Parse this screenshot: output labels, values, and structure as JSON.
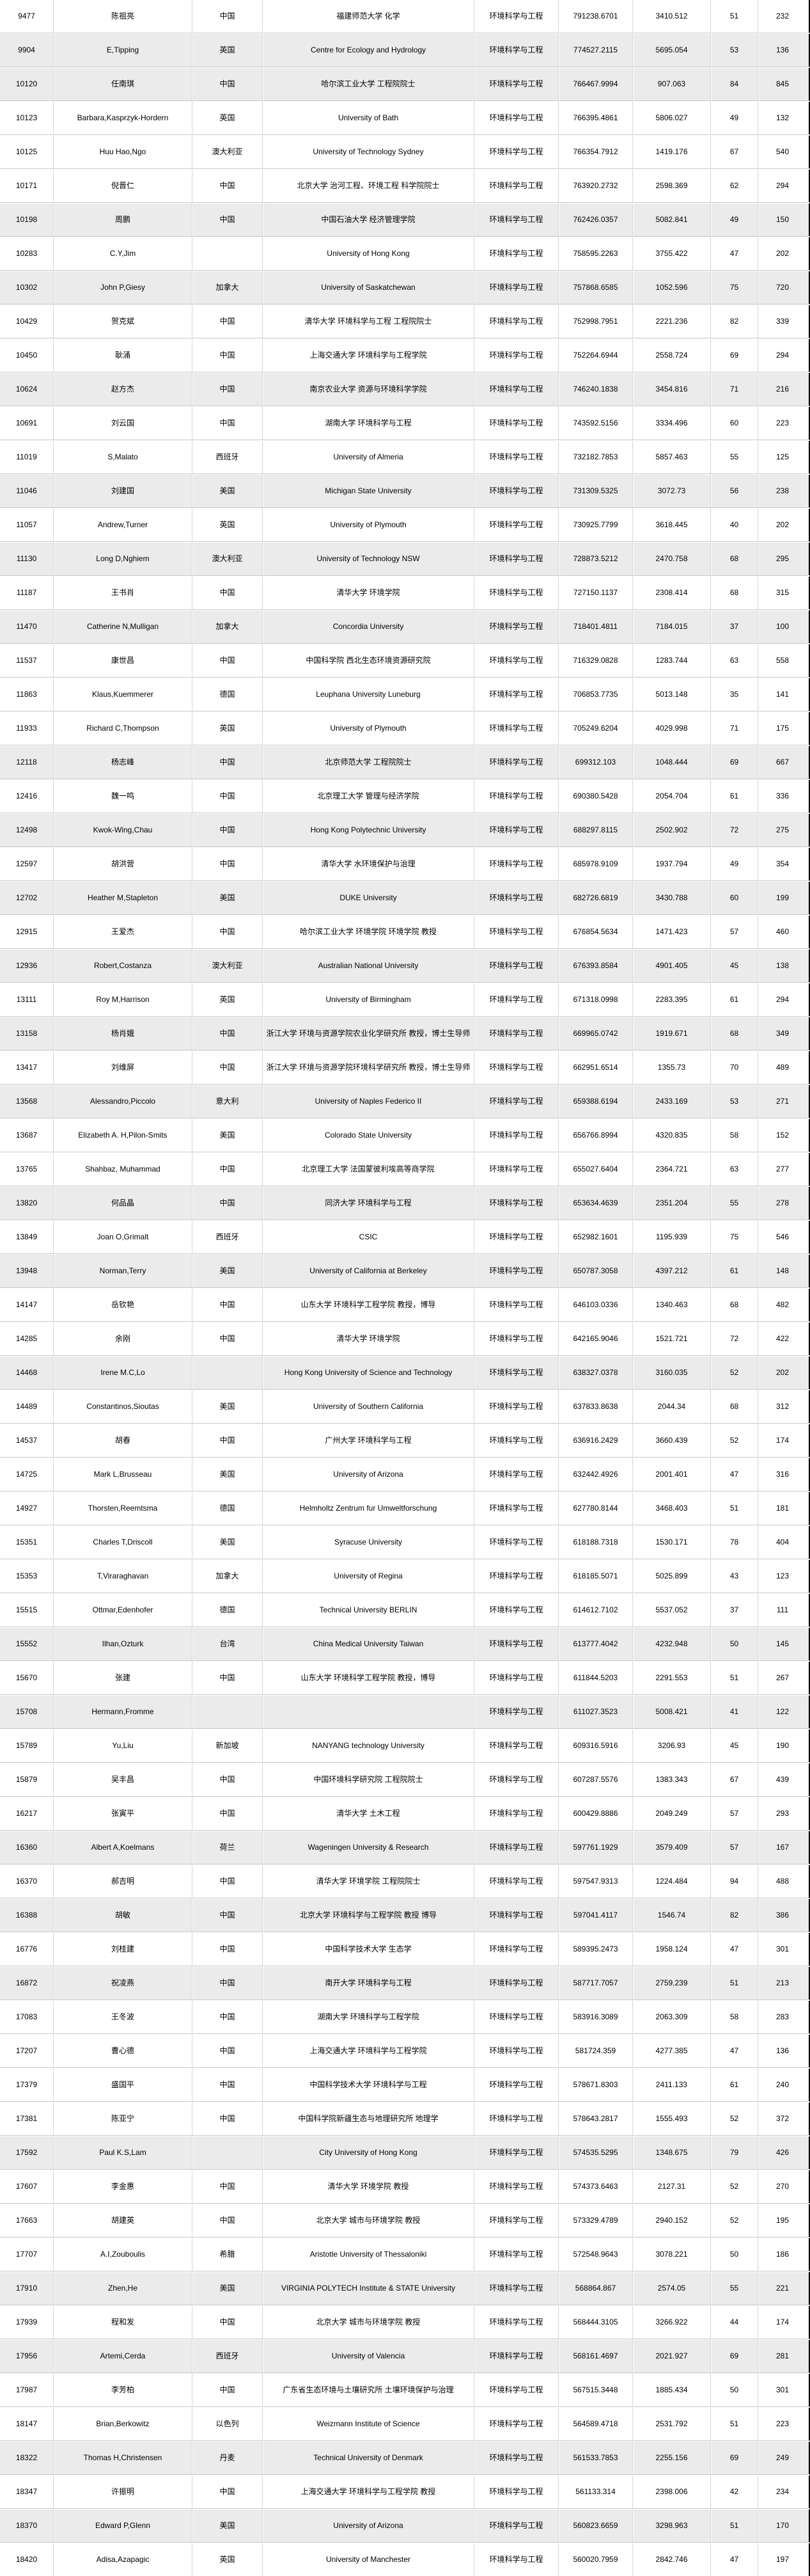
{
  "colors": {
    "row_white": "#ffffff",
    "row_stripe": "#ebebeb",
    "row_separator": "#c9c9c9",
    "column_separator": "#d9d9d9",
    "right_edge_bar": "#000000",
    "text": "#000000"
  },
  "table": {
    "field_label": "环境科学与工程",
    "column_keys": [
      "rank",
      "name",
      "country",
      "institution",
      "field",
      "value1",
      "value2",
      "value3",
      "value4",
      "shade"
    ],
    "rows": [
      [
        "9477",
        "陈祖亮",
        "中国",
        "福建师范大学 化学",
        "环境科学与工程",
        "791238.6701",
        "3410.512",
        "51",
        "232",
        "white"
      ],
      [
        "9904",
        "E,Tipping",
        "英国",
        "Centre for Ecology and Hydrology",
        "环境科学与工程",
        "774527.2115",
        "5695.054",
        "53",
        "136",
        "gray"
      ],
      [
        "10120",
        "任南琪",
        "中国",
        "哈尔滨工业大学 工程院院士",
        "环境科学与工程",
        "766467.9994",
        "907.063",
        "84",
        "845",
        "gray"
      ],
      [
        "10123",
        "Barbara,Kasprzyk-Hordern",
        "英国",
        "University of Bath",
        "环境科学与工程",
        "766395.4861",
        "5806.027",
        "49",
        "132",
        "white"
      ],
      [
        "10125",
        "Huu Hao,Ngo",
        "澳大利亚",
        "University of Technology Sydney",
        "环境科学与工程",
        "766354.7912",
        "1419.176",
        "67",
        "540",
        "white"
      ],
      [
        "10171",
        "倪晋仁",
        "中国",
        "北京大学 治河工程、环境工程 科学院院士",
        "环境科学与工程",
        "763920.2732",
        "2598.369",
        "62",
        "294",
        "white"
      ],
      [
        "10198",
        "周鹏",
        "中国",
        "中国石油大学 经济管理学院",
        "环境科学与工程",
        "762426.0357",
        "5082.841",
        "49",
        "150",
        "gray"
      ],
      [
        "10283",
        "C.Y,Jim",
        "",
        "University of Hong Kong",
        "环境科学与工程",
        "758595.2263",
        "3755.422",
        "47",
        "202",
        "white"
      ],
      [
        "10302",
        "John P,Giesy",
        "加拿大",
        "University of Saskatchewan",
        "环境科学与工程",
        "757868.6585",
        "1052.596",
        "75",
        "720",
        "gray"
      ],
      [
        "10429",
        "贺克斌",
        "中国",
        "清华大学 环境科学与工程 工程院院士",
        "环境科学与工程",
        "752998.7951",
        "2221.236",
        "82",
        "339",
        "white"
      ],
      [
        "10450",
        "耿涌",
        "中国",
        "上海交通大学 环境科学与工程学院",
        "环境科学与工程",
        "752264.6944",
        "2558.724",
        "69",
        "294",
        "white"
      ],
      [
        "10624",
        "赵方杰",
        "中国",
        "南京农业大学 资源与环境科学学院",
        "环境科学与工程",
        "746240.1838",
        "3454.816",
        "71",
        "216",
        "gray"
      ],
      [
        "10691",
        "刘云国",
        "中国",
        "湖南大学 环境科学与工程",
        "环境科学与工程",
        "743592.5156",
        "3334.496",
        "60",
        "223",
        "white"
      ],
      [
        "11019",
        "S,Malato",
        "西班牙",
        "University of Almeria",
        "环境科学与工程",
        "732182.7853",
        "5857.463",
        "55",
        "125",
        "white"
      ],
      [
        "11046",
        "刘建国",
        "美国",
        "Michigan State University",
        "环境科学与工程",
        "731309.5325",
        "3072.73",
        "56",
        "238",
        "gray"
      ],
      [
        "11057",
        "Andrew,Turner",
        "英国",
        "University of Plymouth",
        "环境科学与工程",
        "730925.7799",
        "3618.445",
        "40",
        "202",
        "white"
      ],
      [
        "11130",
        "Long D,Nghiem",
        "澳大利亚",
        "University of Technology NSW",
        "环境科学与工程",
        "728873.5212",
        "2470.758",
        "68",
        "295",
        "gray"
      ],
      [
        "11187",
        "王书肖",
        "中国",
        "清华大学 环境学院",
        "环境科学与工程",
        "727150.1137",
        "2308.414",
        "68",
        "315",
        "white"
      ],
      [
        "11470",
        "Catherine N,Mulligan",
        "加拿大",
        "Concordia University",
        "环境科学与工程",
        "718401.4811",
        "7184.015",
        "37",
        "100",
        "gray"
      ],
      [
        "11537",
        "康世昌",
        "中国",
        "中国科学院 西北生态环境资源研究院",
        "环境科学与工程",
        "716329.0828",
        "1283.744",
        "63",
        "558",
        "white"
      ],
      [
        "11863",
        "Klaus,Kuemmerer",
        "德国",
        "Leuphana University Luneburg",
        "环境科学与工程",
        "706853.7735",
        "5013.148",
        "35",
        "141",
        "white"
      ],
      [
        "11933",
        "Richard C,Thompson",
        "英国",
        "University of Plymouth",
        "环境科学与工程",
        "705249.6204",
        "4029.998",
        "71",
        "175",
        "white"
      ],
      [
        "12118",
        "杨志峰",
        "中国",
        "北京师范大学 工程院院士",
        "环境科学与工程",
        "699312.103",
        "1048.444",
        "69",
        "667",
        "gray"
      ],
      [
        "12416",
        "魏一鸣",
        "中国",
        "北京理工大学 管理与经济学院",
        "环境科学与工程",
        "690380.5428",
        "2054.704",
        "61",
        "336",
        "white"
      ],
      [
        "12498",
        "Kwok-Wing,Chau",
        "中国",
        "Hong Kong Polytechnic University",
        "环境科学与工程",
        "688297.8115",
        "2502.902",
        "72",
        "275",
        "gray"
      ],
      [
        "12597",
        "胡洪营",
        "中国",
        "清华大学 水环境保护与治理",
        "环境科学与工程",
        "685978.9109",
        "1937.794",
        "49",
        "354",
        "white"
      ],
      [
        "12702",
        "Heather M,Stapleton",
        "美国",
        "DUKE University",
        "环境科学与工程",
        "682726.6819",
        "3430.788",
        "60",
        "199",
        "gray"
      ],
      [
        "12915",
        "王爱杰",
        "中国",
        "哈尔滨工业大学 环境学院 环境学院 教授",
        "环境科学与工程",
        "676854.5634",
        "1471.423",
        "57",
        "460",
        "white"
      ],
      [
        "12936",
        "Robert,Costanza",
        "澳大利亚",
        "Australian National University",
        "环境科学与工程",
        "676393.8584",
        "4901.405",
        "45",
        "138",
        "gray"
      ],
      [
        "13111",
        "Roy M,Harrison",
        "英国",
        "University of Birmingham",
        "环境科学与工程",
        "671318.0998",
        "2283.395",
        "61",
        "294",
        "white"
      ],
      [
        "13158",
        "杨肖娥",
        "中国",
        "浙江大学 环境与资源学院农业化学研究所 教授，博士生导师",
        "环境科学与工程",
        "669965.0742",
        "1919.671",
        "68",
        "349",
        "gray"
      ],
      [
        "13417",
        "刘维屏",
        "中国",
        "浙江大学 环境与资源学院环境科学研究所 教授，博士生导师",
        "环境科学与工程",
        "662951.6514",
        "1355.73",
        "70",
        "489",
        "white"
      ],
      [
        "13568",
        "Alessandro,Piccolo",
        "意大利",
        "University of Naples Federico II",
        "环境科学与工程",
        "659388.6194",
        "2433.169",
        "53",
        "271",
        "gray"
      ],
      [
        "13687",
        "Elizabeth A. H,Pilon-Smits",
        "美国",
        "Colorado State University",
        "环境科学与工程",
        "656766.8994",
        "4320.835",
        "58",
        "152",
        "white"
      ],
      [
        "13765",
        "Shahbaz, Muhammad",
        "中国",
        "北京理工大学 法国蒙彼利埃高等商学院",
        "环境科学与工程",
        "655027.6404",
        "2364.721",
        "63",
        "277",
        "white"
      ],
      [
        "13820",
        "何品晶",
        "中国",
        "同济大学 环境科学与工程",
        "环境科学与工程",
        "653634.4639",
        "2351.204",
        "55",
        "278",
        "gray"
      ],
      [
        "13849",
        "Joan O,Grimalt",
        "西班牙",
        "CSIC",
        "环境科学与工程",
        "652982.1601",
        "1195.939",
        "75",
        "546",
        "white"
      ],
      [
        "13948",
        "Norman,Terry",
        "美国",
        "University of California at Berkeley",
        "环境科学与工程",
        "650787.3058",
        "4397.212",
        "61",
        "148",
        "gray"
      ],
      [
        "14147",
        "岳钦艳",
        "中国",
        "山东大学 环境科学工程学院 教授，博导",
        "环境科学与工程",
        "646103.0336",
        "1340.463",
        "68",
        "482",
        "white"
      ],
      [
        "14285",
        "余刚",
        "中国",
        "清华大学 环境学院",
        "环境科学与工程",
        "642165.9046",
        "1521.721",
        "72",
        "422",
        "white"
      ],
      [
        "14468",
        "Irene M.C,Lo",
        "",
        "Hong Kong University of Science and Technology",
        "环境科学与工程",
        "638327.0378",
        "3160.035",
        "52",
        "202",
        "gray"
      ],
      [
        "14489",
        "Constantinos,Sioutas",
        "美国",
        "University of Southern California",
        "环境科学与工程",
        "637833.8638",
        "2044.34",
        "68",
        "312",
        "white"
      ],
      [
        "14537",
        "胡春",
        "中国",
        "广州大学 环境科学与工程",
        "环境科学与工程",
        "636916.2429",
        "3660.439",
        "52",
        "174",
        "white"
      ],
      [
        "14725",
        "Mark L,Brusseau",
        "美国",
        "University of Arizona",
        "环境科学与工程",
        "632442.4926",
        "2001.401",
        "47",
        "316",
        "white"
      ],
      [
        "14927",
        "Thorsten,Reemtsma",
        "德国",
        "Helmholtz Zentrum fur Umweltforschung",
        "环境科学与工程",
        "627780.8144",
        "3468.403",
        "51",
        "181",
        "white"
      ],
      [
        "15351",
        "Charles T,Driscoll",
        "美国",
        "Syracuse University",
        "环境科学与工程",
        "618188.7318",
        "1530.171",
        "78",
        "404",
        "white"
      ],
      [
        "15353",
        "T,Viraraghavan",
        "加拿大",
        "University of Regina",
        "环境科学与工程",
        "618185.5071",
        "5025.899",
        "43",
        "123",
        "white"
      ],
      [
        "15515",
        "Ottmar,Edenhofer",
        "德国",
        "Technical University BERLIN",
        "环境科学与工程",
        "614612.7102",
        "5537.052",
        "37",
        "111",
        "white"
      ],
      [
        "15552",
        "Ilhan,Ozturk",
        "台湾",
        "China Medical University Taiwan",
        "环境科学与工程",
        "613777.4042",
        "4232.948",
        "50",
        "145",
        "gray"
      ],
      [
        "15670",
        "张建",
        "中国",
        "山东大学 环境科学工程学院 教授，博导",
        "环境科学与工程",
        "611844.5203",
        "2291.553",
        "51",
        "267",
        "white"
      ],
      [
        "15708",
        "Hermann,Fromme",
        "",
        "",
        "环境科学与工程",
        "611027.3523",
        "5008.421",
        "41",
        "122",
        "gray"
      ],
      [
        "15789",
        "Yu,Liu",
        "新加坡",
        "NANYANG technology University",
        "环境科学与工程",
        "609316.5916",
        "3206.93",
        "45",
        "190",
        "white"
      ],
      [
        "15879",
        "吴丰昌",
        "中国",
        "中国环境科学研究院 工程院院士",
        "环境科学与工程",
        "607287.5576",
        "1383.343",
        "67",
        "439",
        "white"
      ],
      [
        "16217",
        "张寅平",
        "中国",
        "清华大学 土木工程",
        "环境科学与工程",
        "600429.8886",
        "2049.249",
        "57",
        "293",
        "white"
      ],
      [
        "16360",
        "Albert A,Koelmans",
        "荷兰",
        "Wageningen University & Research",
        "环境科学与工程",
        "597761.1929",
        "3579.409",
        "57",
        "167",
        "gray"
      ],
      [
        "16370",
        "郝吉明",
        "中国",
        "清华大学 环境学院 工程院院士",
        "环境科学与工程",
        "597547.9313",
        "1224.484",
        "94",
        "488",
        "white"
      ],
      [
        "16388",
        "胡敏",
        "中国",
        "北京大学 环境科学与工程学院 教授 博导",
        "环境科学与工程",
        "597041.4117",
        "1546.74",
        "82",
        "386",
        "gray"
      ],
      [
        "16776",
        "刘桂建",
        "中国",
        "中国科学技术大学 生态学",
        "环境科学与工程",
        "589395.2473",
        "1958.124",
        "47",
        "301",
        "white"
      ],
      [
        "16872",
        "祝凌燕",
        "中国",
        "南开大学 环境科学与工程",
        "环境科学与工程",
        "587717.7057",
        "2759.239",
        "51",
        "213",
        "gray"
      ],
      [
        "17083",
        "王冬波",
        "中国",
        "湖南大学 环境科学与工程学院",
        "环境科学与工程",
        "583916.3089",
        "2063.309",
        "58",
        "283",
        "white"
      ],
      [
        "17207",
        "曹心德",
        "中国",
        "上海交通大学 环境科学与工程学院",
        "环境科学与工程",
        "581724.359",
        "4277.385",
        "47",
        "136",
        "white"
      ],
      [
        "17379",
        "盛国平",
        "中国",
        "中国科学技术大学 环境科学与工程",
        "环境科学与工程",
        "578671.8303",
        "2411.133",
        "61",
        "240",
        "white"
      ],
      [
        "17381",
        "陈亚宁",
        "中国",
        "中国科学院新疆生态与地理研究所 地理学",
        "环境科学与工程",
        "578643.2817",
        "1555.493",
        "52",
        "372",
        "white"
      ],
      [
        "17592",
        "Paul K.S,Lam",
        "",
        "City University of Hong Kong",
        "环境科学与工程",
        "574535.5295",
        "1348.675",
        "79",
        "426",
        "gray"
      ],
      [
        "17607",
        "李金惠",
        "中国",
        "清华大学 环境学院 教授",
        "环境科学与工程",
        "574373.6463",
        "2127.31",
        "52",
        "270",
        "white"
      ],
      [
        "17663",
        "胡建英",
        "中国",
        "北京大学 城市与环境学院 教授",
        "环境科学与工程",
        "573329.4789",
        "2940.152",
        "52",
        "195",
        "white"
      ],
      [
        "17707",
        "A.I,Zouboulis",
        "希腊",
        "Aristotle University of Thessaloniki",
        "环境科学与工程",
        "572548.9643",
        "3078.221",
        "50",
        "186",
        "white"
      ],
      [
        "17910",
        "Zhen,He",
        "美国",
        "VIRGINIA POLYTECH Institute & STATE University",
        "环境科学与工程",
        "568864.867",
        "2574.05",
        "55",
        "221",
        "gray"
      ],
      [
        "17939",
        "程和发",
        "中国",
        "北京大学 城市与环境学院 教授",
        "环境科学与工程",
        "568444.3105",
        "3266.922",
        "44",
        "174",
        "white"
      ],
      [
        "17956",
        "Artemi,Cerda",
        "西班牙",
        "University of Valencia",
        "环境科学与工程",
        "568161.4697",
        "2021.927",
        "69",
        "281",
        "gray"
      ],
      [
        "17987",
        "李芳柏",
        "中国",
        "广东省生态环境与土壤研究所 土壤环境保护与治理",
        "环境科学与工程",
        "567515.3448",
        "1885.434",
        "50",
        "301",
        "white"
      ],
      [
        "18147",
        "Brian,Berkowitz",
        "以色列",
        "Weizmann Institute of Science",
        "环境科学与工程",
        "564589.4718",
        "2531.792",
        "51",
        "223",
        "white"
      ],
      [
        "18322",
        "Thomas H,Christensen",
        "丹麦",
        "Technical University of Denmark",
        "环境科学与工程",
        "561533.7853",
        "2255.156",
        "69",
        "249",
        "gray"
      ],
      [
        "18347",
        "许振明",
        "中国",
        "上海交通大学 环境科学与工程学院 教授",
        "环境科学与工程",
        "561133.314",
        "2398.006",
        "42",
        "234",
        "white"
      ],
      [
        "18370",
        "Edward P,Glenn",
        "美国",
        "University of Arizona",
        "环境科学与工程",
        "560823.6659",
        "3298.963",
        "51",
        "170",
        "gray"
      ],
      [
        "18420",
        "Adisa,Azapagic",
        "英国",
        "University of Manchester",
        "环境科学与工程",
        "560020.7959",
        "2842.746",
        "47",
        "197",
        "white"
      ]
    ]
  }
}
